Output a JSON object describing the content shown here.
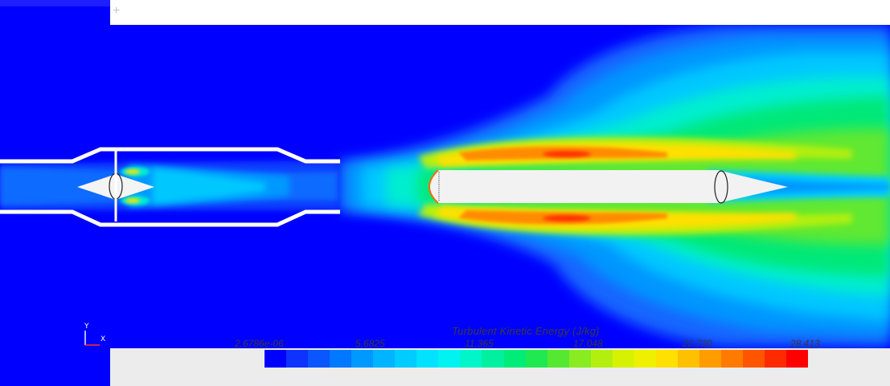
{
  "legend": {
    "title": "Turbulent Kinetic Energy (J/kg)",
    "ticks": [
      "2.6786e-06",
      "5.6825",
      "11.365",
      "17.048",
      "22.730",
      "28.413"
    ],
    "colors": [
      "#0000ff",
      "#0f33ff",
      "#0a56ff",
      "#0078ff",
      "#0099ff",
      "#00b4ff",
      "#00ccff",
      "#00e2ff",
      "#00f3f0",
      "#00f5c9",
      "#00f0a0",
      "#00ec78",
      "#20e850",
      "#55e830",
      "#88ec20",
      "#b2ef10",
      "#d7f200",
      "#eef000",
      "#ffe000",
      "#ffc000",
      "#ff9c00",
      "#ff7a00",
      "#ff5500",
      "#ff2a00",
      "#ff0000"
    ]
  },
  "axes": {
    "x_label": "X",
    "y_label": "Y"
  },
  "palette": {
    "background": "#0000ff",
    "toolbar": "#ffffff",
    "panel": "#ececec"
  },
  "toolbar": {
    "icon": "plus-icon"
  }
}
